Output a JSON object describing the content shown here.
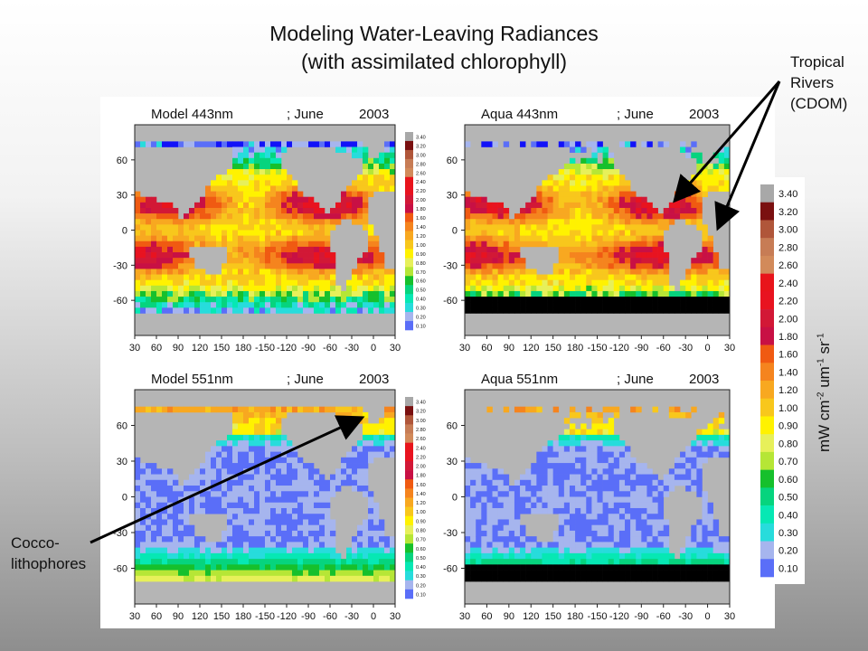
{
  "title": {
    "line1": "Modeling Water-Leaving Radiances",
    "line2": "(with assimilated chlorophyll)"
  },
  "annotations": {
    "tropical": [
      "Tropical",
      "Rivers",
      "(CDOM)"
    ],
    "cocco": [
      "Cocco-",
      "lithophores"
    ]
  },
  "unit_label": {
    "main": "mW cm",
    "sup1": "-2",
    "mid": " um",
    "sup2": "-1",
    "end": " sr",
    "sup3": "-1"
  },
  "chart_data": {
    "type": "heatmap",
    "panels": [
      {
        "title_left": "Model 443nm",
        "title_mid": "; June",
        "title_right": "2003",
        "kind": "model-443"
      },
      {
        "title_left": "Aqua 443nm",
        "title_mid": "; June",
        "title_right": "2003",
        "kind": "aqua-443"
      },
      {
        "title_left": "Model 551nm",
        "title_mid": "; June",
        "title_right": "2003",
        "kind": "model-551"
      },
      {
        "title_left": "Aqua 551nm",
        "title_mid": "; June",
        "title_right": "2003",
        "kind": "aqua-551"
      }
    ],
    "x_ticks": [
      "30",
      "60",
      "90",
      "120",
      "150",
      "180",
      "-150",
      "-120",
      "-90",
      "-60",
      "-30",
      "0",
      "30"
    ],
    "y_ticks": [
      "60",
      "30",
      "0",
      "-30",
      "-60"
    ],
    "colorbar": {
      "levels": [
        "3.40",
        "3.20",
        "3.00",
        "2.80",
        "2.60",
        "2.40",
        "2.20",
        "2.00",
        "1.80",
        "1.60",
        "1.40",
        "1.20",
        "1.00",
        "0.90",
        "0.80",
        "0.70",
        "0.60",
        "0.50",
        "0.40",
        "0.30",
        "0.20",
        "0.10"
      ],
      "colors": [
        "#a8a8a8",
        "#7a1010",
        "#b0563a",
        "#c77c55",
        "#d28a5a",
        "#e8141b",
        "#e81320",
        "#d21836",
        "#c81044",
        "#f05a12",
        "#f5841e",
        "#f8a820",
        "#f8c71c",
        "#fff200",
        "#e7f05a",
        "#b6e636",
        "#16c02c",
        "#06d47e",
        "#06e8b4",
        "#27dcdc",
        "#a6b5ee",
        "#5a6ef8",
        "#1212f8"
      ],
      "unit": "mW cm-2 um-1 sr-1"
    }
  }
}
